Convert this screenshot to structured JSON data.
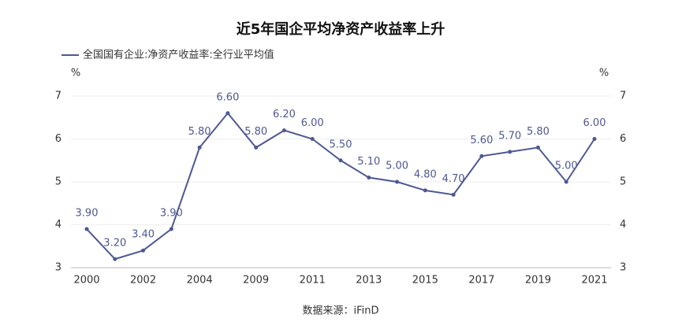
{
  "chart_data": {
    "type": "line",
    "title": "近5年国企平均净资产收益率上升",
    "source": "数据来源：iFinD",
    "y_unit": "%",
    "y2_unit": "%",
    "categories": [
      "2000",
      null,
      "2002",
      null,
      "2004",
      null,
      "2009",
      null,
      "2011",
      null,
      "2013",
      null,
      "2015",
      null,
      "2017",
      null,
      "2019",
      null,
      "2021"
    ],
    "series": [
      {
        "name": "全国国有企业:净资产收益率:全行业平均值",
        "color": "#4e5891",
        "values": [
          3.9,
          3.2,
          3.4,
          3.9,
          5.8,
          6.6,
          5.8,
          6.2,
          6.0,
          5.5,
          5.1,
          5.0,
          4.8,
          4.7,
          5.6,
          5.7,
          5.8,
          5.0,
          6.0
        ],
        "value_labels": [
          "3.90",
          "3.20",
          "3.40",
          "3.90",
          "5.80",
          "6.60",
          "5.80",
          "6.20",
          "6.00",
          "5.50",
          "5.10",
          "5.00",
          "4.80",
          "4.70",
          "5.60",
          "5.70",
          "5.80",
          "5.00",
          "6.00"
        ]
      }
    ],
    "ylim": [
      3,
      7
    ],
    "yticks": [
      3,
      4,
      5,
      6,
      7
    ],
    "y2lim": [
      3,
      7
    ],
    "y2ticks": [
      3,
      4,
      5,
      6,
      7
    ],
    "grid": true,
    "legend": "top-left"
  }
}
